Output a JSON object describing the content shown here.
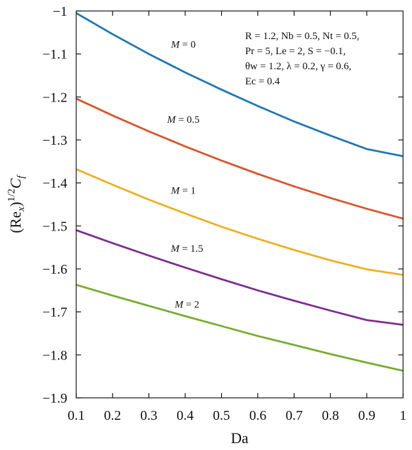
{
  "chart_data": {
    "type": "line",
    "xlabel": "Da",
    "ylabel": "(Re_x)^{1/2} C_f",
    "xlim": [
      0.1,
      1.0
    ],
    "ylim": [
      -1.9,
      -1.0
    ],
    "xticks": [
      "0.1",
      "0.2",
      "0.3",
      "0.4",
      "0.5",
      "0.6",
      "0.7",
      "0.8",
      "0.9",
      "1"
    ],
    "yticks": [
      "-1",
      "-1.1",
      "-1.2",
      "-1.3",
      "-1.4",
      "-1.5",
      "-1.6",
      "-1.7",
      "-1.8",
      "-1.9"
    ],
    "grid": false,
    "x": [
      0.1,
      0.2,
      0.3,
      0.4,
      0.5,
      0.6,
      0.7,
      0.8,
      0.9,
      1.0
    ],
    "series": [
      {
        "name": "M = 0",
        "color": "#1f77b4",
        "values": [
          -1.005,
          -1.054,
          -1.1,
          -1.143,
          -1.183,
          -1.221,
          -1.257,
          -1.29,
          -1.321,
          -1.338
        ]
      },
      {
        "name": "M = 0.5",
        "color": "#d9542a",
        "values": [
          -1.204,
          -1.243,
          -1.28,
          -1.315,
          -1.348,
          -1.379,
          -1.408,
          -1.435,
          -1.46,
          -1.483
        ]
      },
      {
        "name": "M = 1",
        "color": "#edb022",
        "values": [
          -1.368,
          -1.404,
          -1.439,
          -1.471,
          -1.502,
          -1.53,
          -1.556,
          -1.58,
          -1.601,
          -1.614
        ]
      },
      {
        "name": "M = 1.5",
        "color": "#7a2e8f",
        "values": [
          -1.51,
          -1.54,
          -1.569,
          -1.597,
          -1.624,
          -1.65,
          -1.674,
          -1.697,
          -1.719,
          -1.73
        ]
      },
      {
        "name": "M = 2",
        "color": "#77ac30",
        "values": [
          -1.637,
          -1.662,
          -1.686,
          -1.71,
          -1.733,
          -1.756,
          -1.777,
          -1.798,
          -1.818,
          -1.837
        ]
      }
    ],
    "annotations": {
      "curve_labels": [
        {
          "series": 0,
          "M_value": "0",
          "anchor_x": 0.395,
          "anchor_y": -1.085
        },
        {
          "series": 1,
          "M_value": "0.5",
          "anchor_x": 0.395,
          "anchor_y": -1.26
        },
        {
          "series": 2,
          "M_value": "1",
          "anchor_x": 0.395,
          "anchor_y": -1.425
        },
        {
          "series": 3,
          "M_value": "1.5",
          "anchor_x": 0.405,
          "anchor_y": -1.56
        },
        {
          "series": 4,
          "M_value": "2",
          "anchor_x": 0.405,
          "anchor_y": -1.69
        }
      ],
      "parameters": [
        "R = 1.2, Nb = 0.5, Nt = 0.5,",
        "Pr = 5, Le = 2, S = −0.1,",
        "θw = 1.2, λ = 0.2, γ = 0.6,",
        "Ec = 0.4"
      ]
    }
  }
}
